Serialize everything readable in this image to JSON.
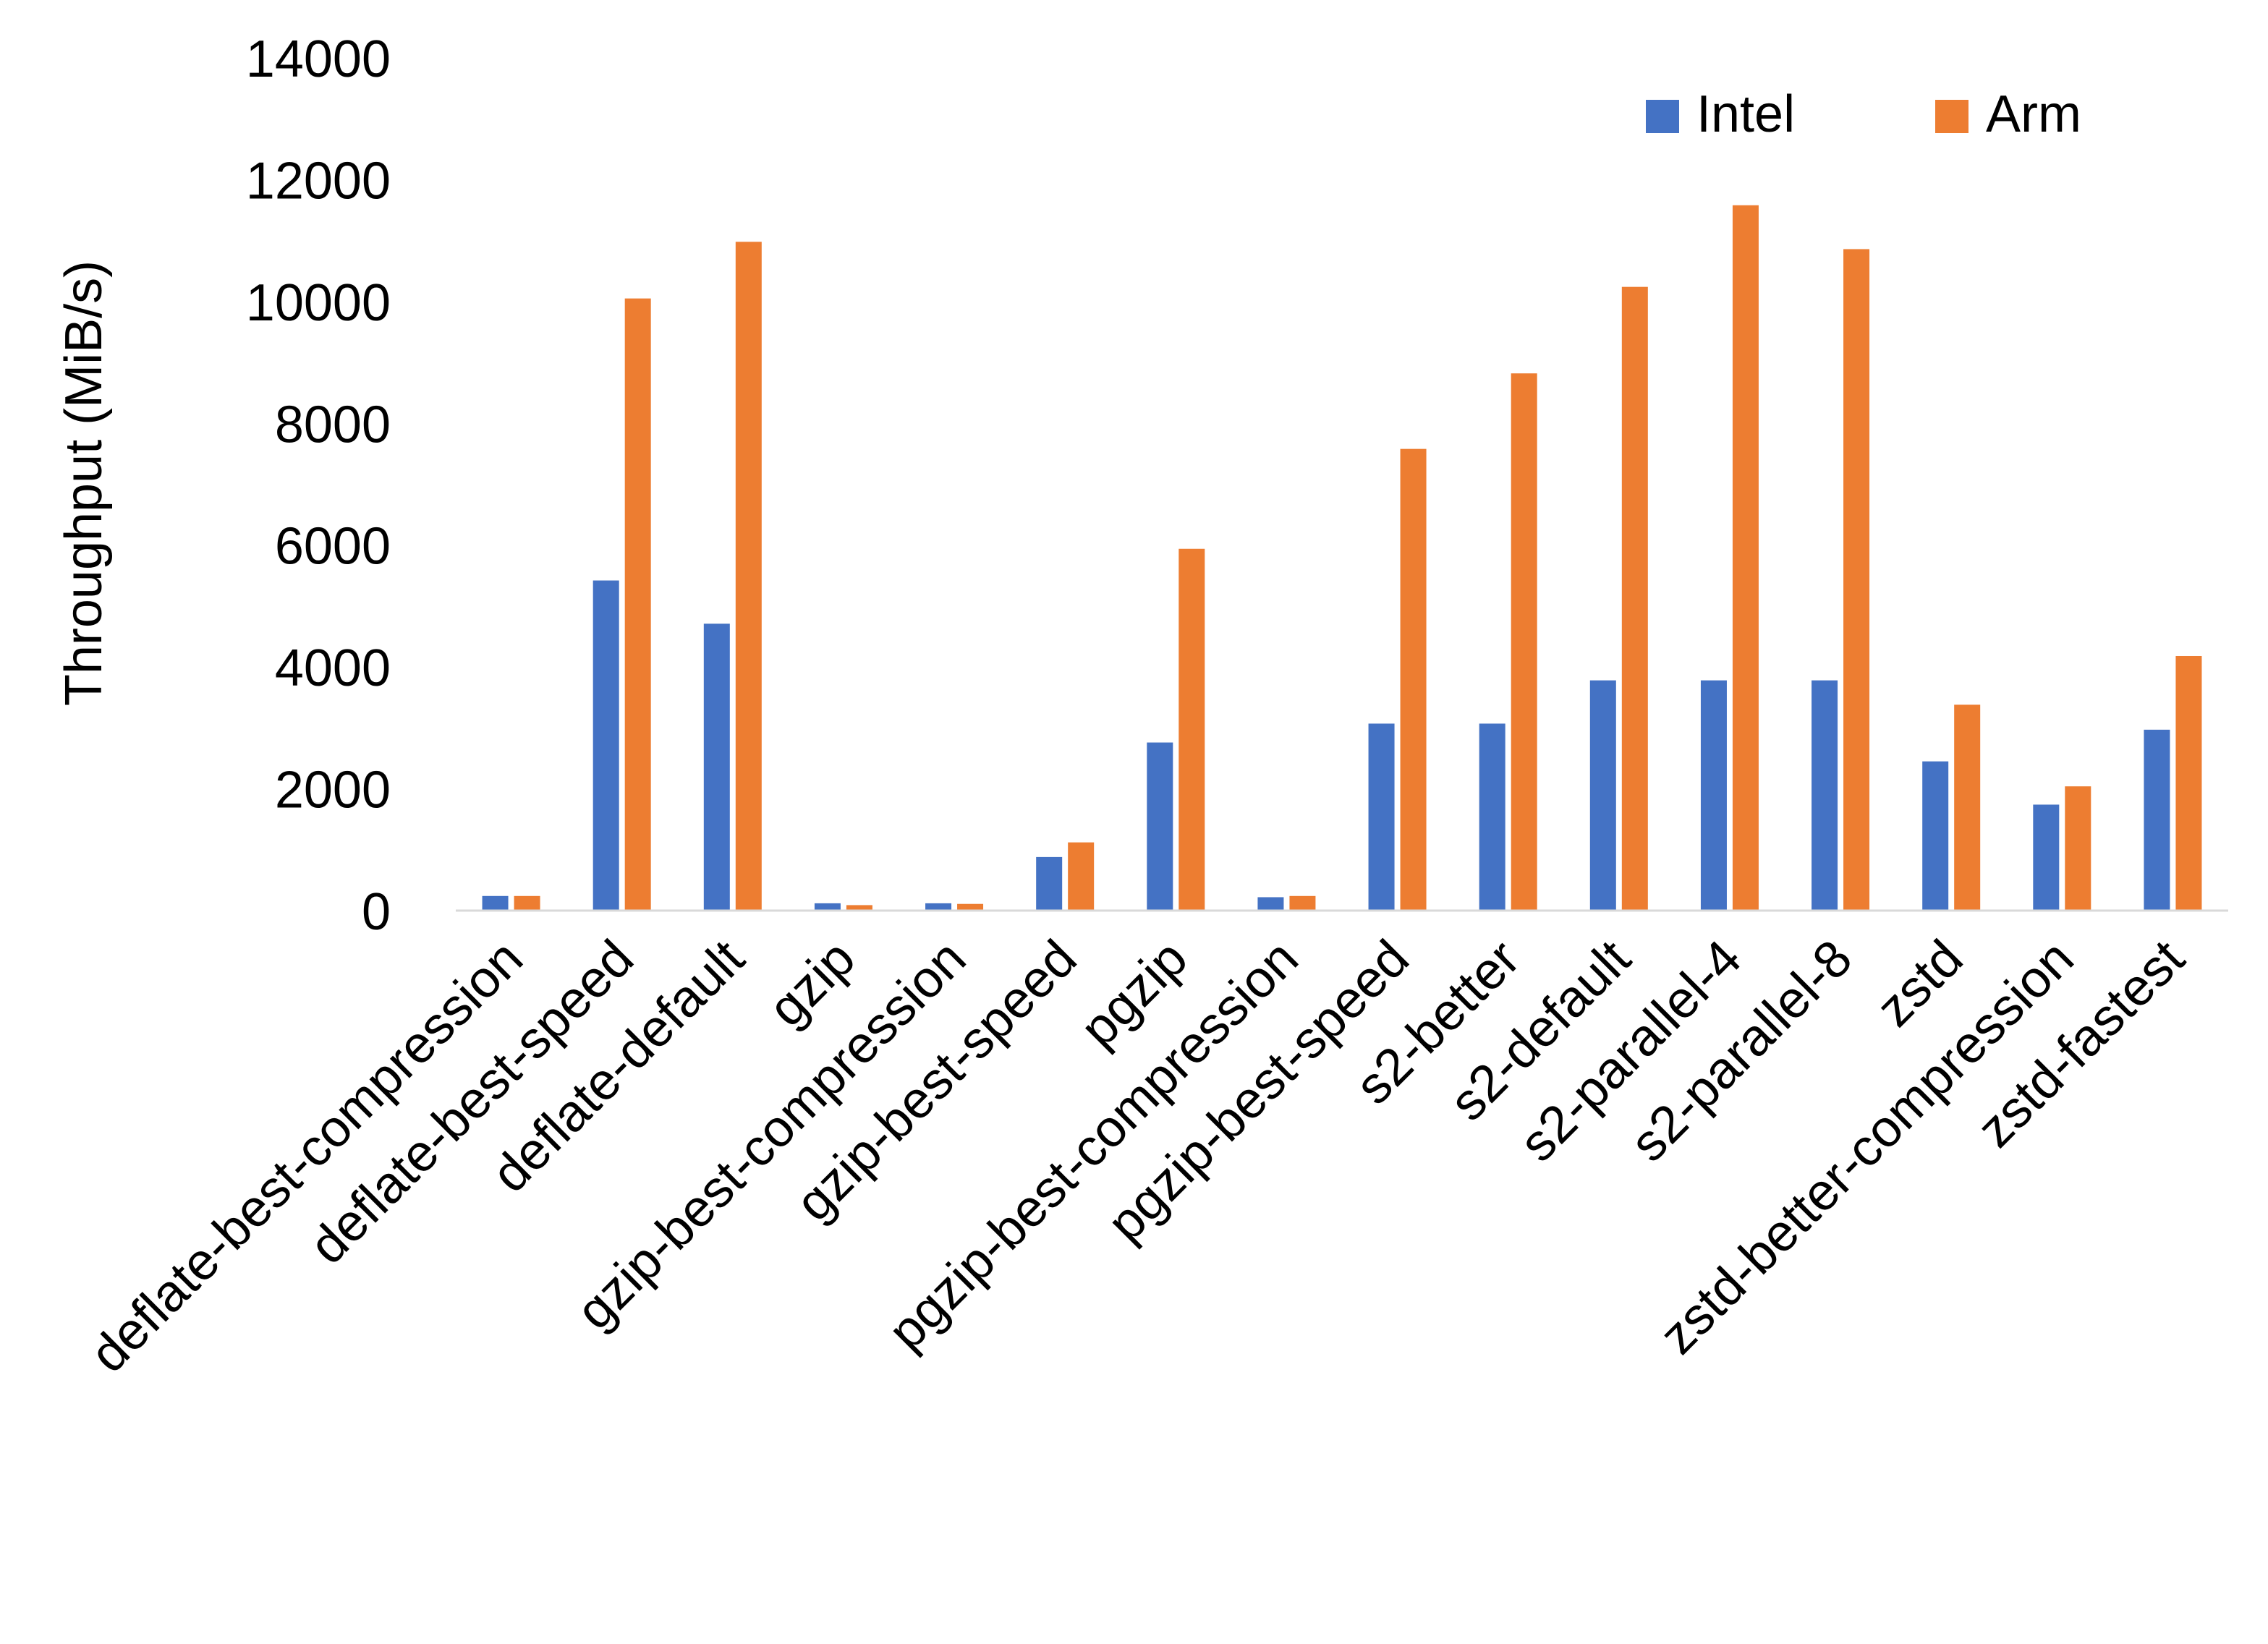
{
  "chart_data": {
    "type": "bar",
    "title": "",
    "xlabel": "",
    "ylabel": "Throughput (MiB/s)",
    "ylim": [
      0,
      14000
    ],
    "yticks": [
      0,
      2000,
      4000,
      6000,
      8000,
      10000,
      12000,
      14000
    ],
    "grid": false,
    "legend_position": "top-right",
    "categories": [
      "deflate-best-compression",
      "deflate-best-speed",
      "deflate-default",
      "gzip",
      "gzip-best-compression",
      "gzip-best-speed",
      "pgzip",
      "pgzip-best-compression",
      "pgzip-best-speed",
      "s2-better",
      "s2-default",
      "s2-parallel-4",
      "s2-parallel-8",
      "zstd",
      "zstd-better-compression",
      "zstd-fastest"
    ],
    "series": [
      {
        "name": "Intel",
        "color": "#4472C4",
        "values": [
          240,
          5420,
          4710,
          120,
          120,
          880,
          2760,
          220,
          3070,
          3070,
          3780,
          3780,
          3780,
          2450,
          1740,
          2970
        ]
      },
      {
        "name": "Arm",
        "color": "#ED7D31",
        "values": [
          240,
          10050,
          10980,
          90,
          110,
          1120,
          5940,
          240,
          7580,
          8820,
          10240,
          11580,
          10860,
          3380,
          2040,
          4180
        ]
      }
    ]
  }
}
